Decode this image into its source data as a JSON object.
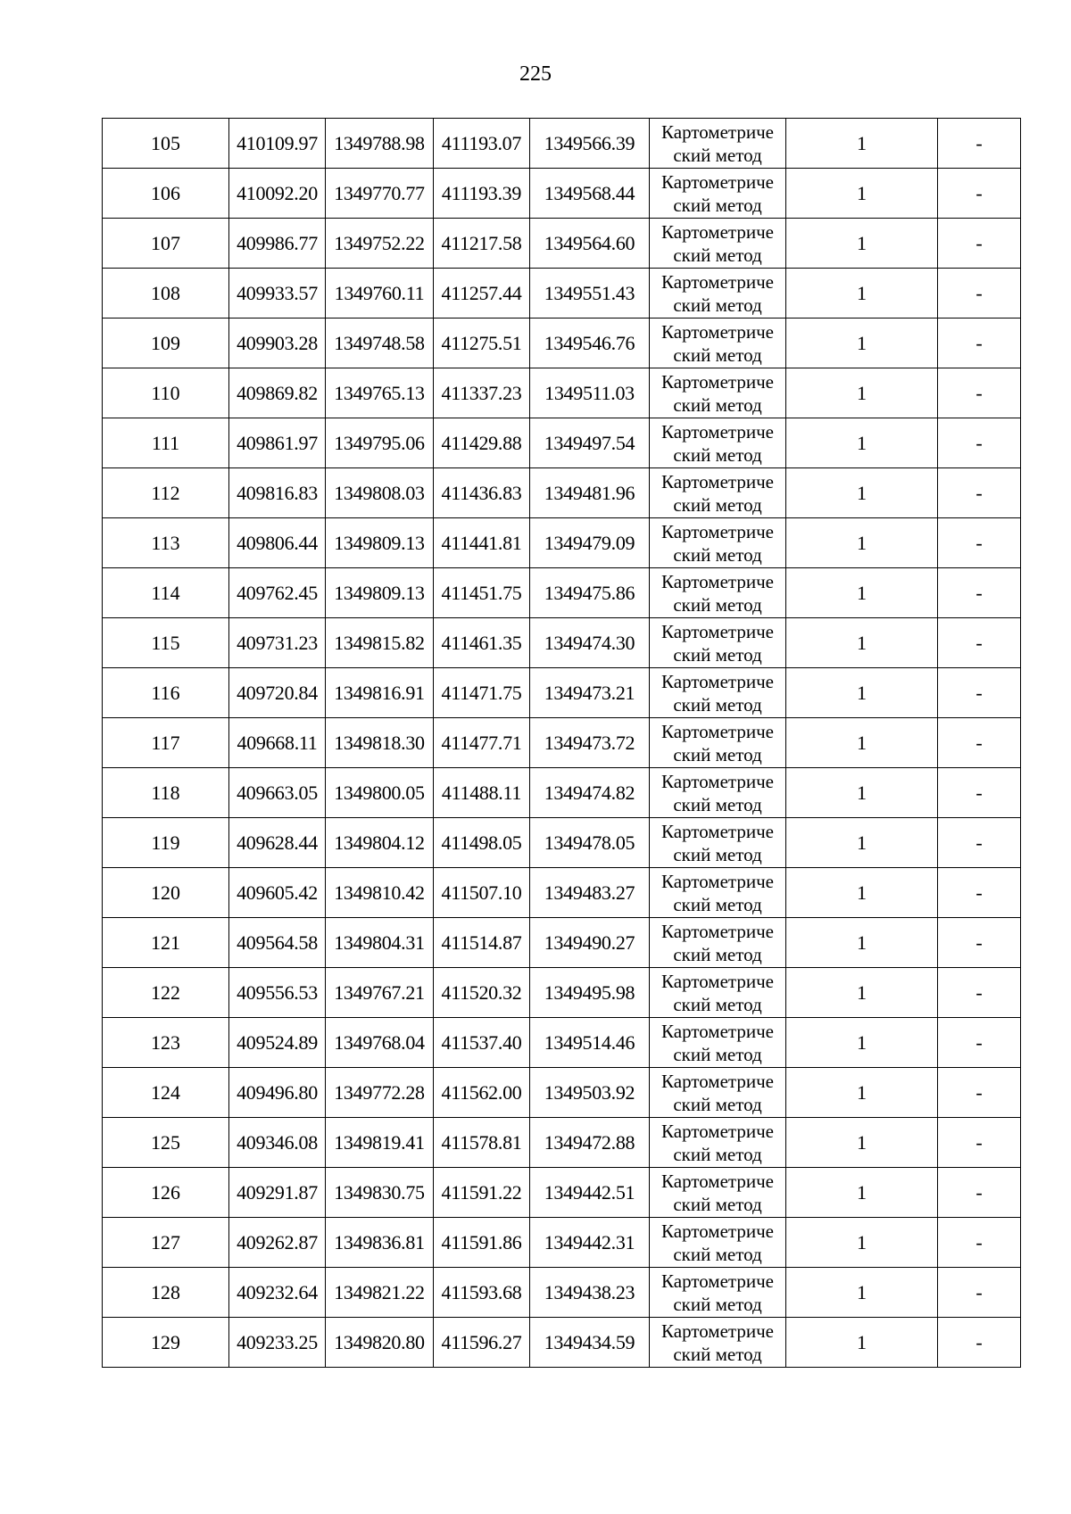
{
  "page_number": "225",
  "method_label": [
    "Картометриче",
    "ский метод"
  ],
  "rows": [
    [
      "105",
      "410109.97",
      "1349788.98",
      "411193.07",
      "1349566.39",
      "1",
      "-"
    ],
    [
      "106",
      "410092.20",
      "1349770.77",
      "411193.39",
      "1349568.44",
      "1",
      "-"
    ],
    [
      "107",
      "409986.77",
      "1349752.22",
      "411217.58",
      "1349564.60",
      "1",
      "-"
    ],
    [
      "108",
      "409933.57",
      "1349760.11",
      "411257.44",
      "1349551.43",
      "1",
      "-"
    ],
    [
      "109",
      "409903.28",
      "1349748.58",
      "411275.51",
      "1349546.76",
      "1",
      "-"
    ],
    [
      "110",
      "409869.82",
      "1349765.13",
      "411337.23",
      "1349511.03",
      "1",
      "-"
    ],
    [
      "111",
      "409861.97",
      "1349795.06",
      "411429.88",
      "1349497.54",
      "1",
      "-"
    ],
    [
      "112",
      "409816.83",
      "1349808.03",
      "411436.83",
      "1349481.96",
      "1",
      "-"
    ],
    [
      "113",
      "409806.44",
      "1349809.13",
      "411441.81",
      "1349479.09",
      "1",
      "-"
    ],
    [
      "114",
      "409762.45",
      "1349809.13",
      "411451.75",
      "1349475.86",
      "1",
      "-"
    ],
    [
      "115",
      "409731.23",
      "1349815.82",
      "411461.35",
      "1349474.30",
      "1",
      "-"
    ],
    [
      "116",
      "409720.84",
      "1349816.91",
      "411471.75",
      "1349473.21",
      "1",
      "-"
    ],
    [
      "117",
      "409668.11",
      "1349818.30",
      "411477.71",
      "1349473.72",
      "1",
      "-"
    ],
    [
      "118",
      "409663.05",
      "1349800.05",
      "411488.11",
      "1349474.82",
      "1",
      "-"
    ],
    [
      "119",
      "409628.44",
      "1349804.12",
      "411498.05",
      "1349478.05",
      "1",
      "-"
    ],
    [
      "120",
      "409605.42",
      "1349810.42",
      "411507.10",
      "1349483.27",
      "1",
      "-"
    ],
    [
      "121",
      "409564.58",
      "1349804.31",
      "411514.87",
      "1349490.27",
      "1",
      "-"
    ],
    [
      "122",
      "409556.53",
      "1349767.21",
      "411520.32",
      "1349495.98",
      "1",
      "-"
    ],
    [
      "123",
      "409524.89",
      "1349768.04",
      "411537.40",
      "1349514.46",
      "1",
      "-"
    ],
    [
      "124",
      "409496.80",
      "1349772.28",
      "411562.00",
      "1349503.92",
      "1",
      "-"
    ],
    [
      "125",
      "409346.08",
      "1349819.41",
      "411578.81",
      "1349472.88",
      "1",
      "-"
    ],
    [
      "126",
      "409291.87",
      "1349830.75",
      "411591.22",
      "1349442.51",
      "1",
      "-"
    ],
    [
      "127",
      "409262.87",
      "1349836.81",
      "411591.86",
      "1349442.31",
      "1",
      "-"
    ],
    [
      "128",
      "409232.64",
      "1349821.22",
      "411593.68",
      "1349438.23",
      "1",
      "-"
    ],
    [
      "129",
      "409233.25",
      "1349820.80",
      "411596.27",
      "1349434.59",
      "1",
      "-"
    ]
  ]
}
